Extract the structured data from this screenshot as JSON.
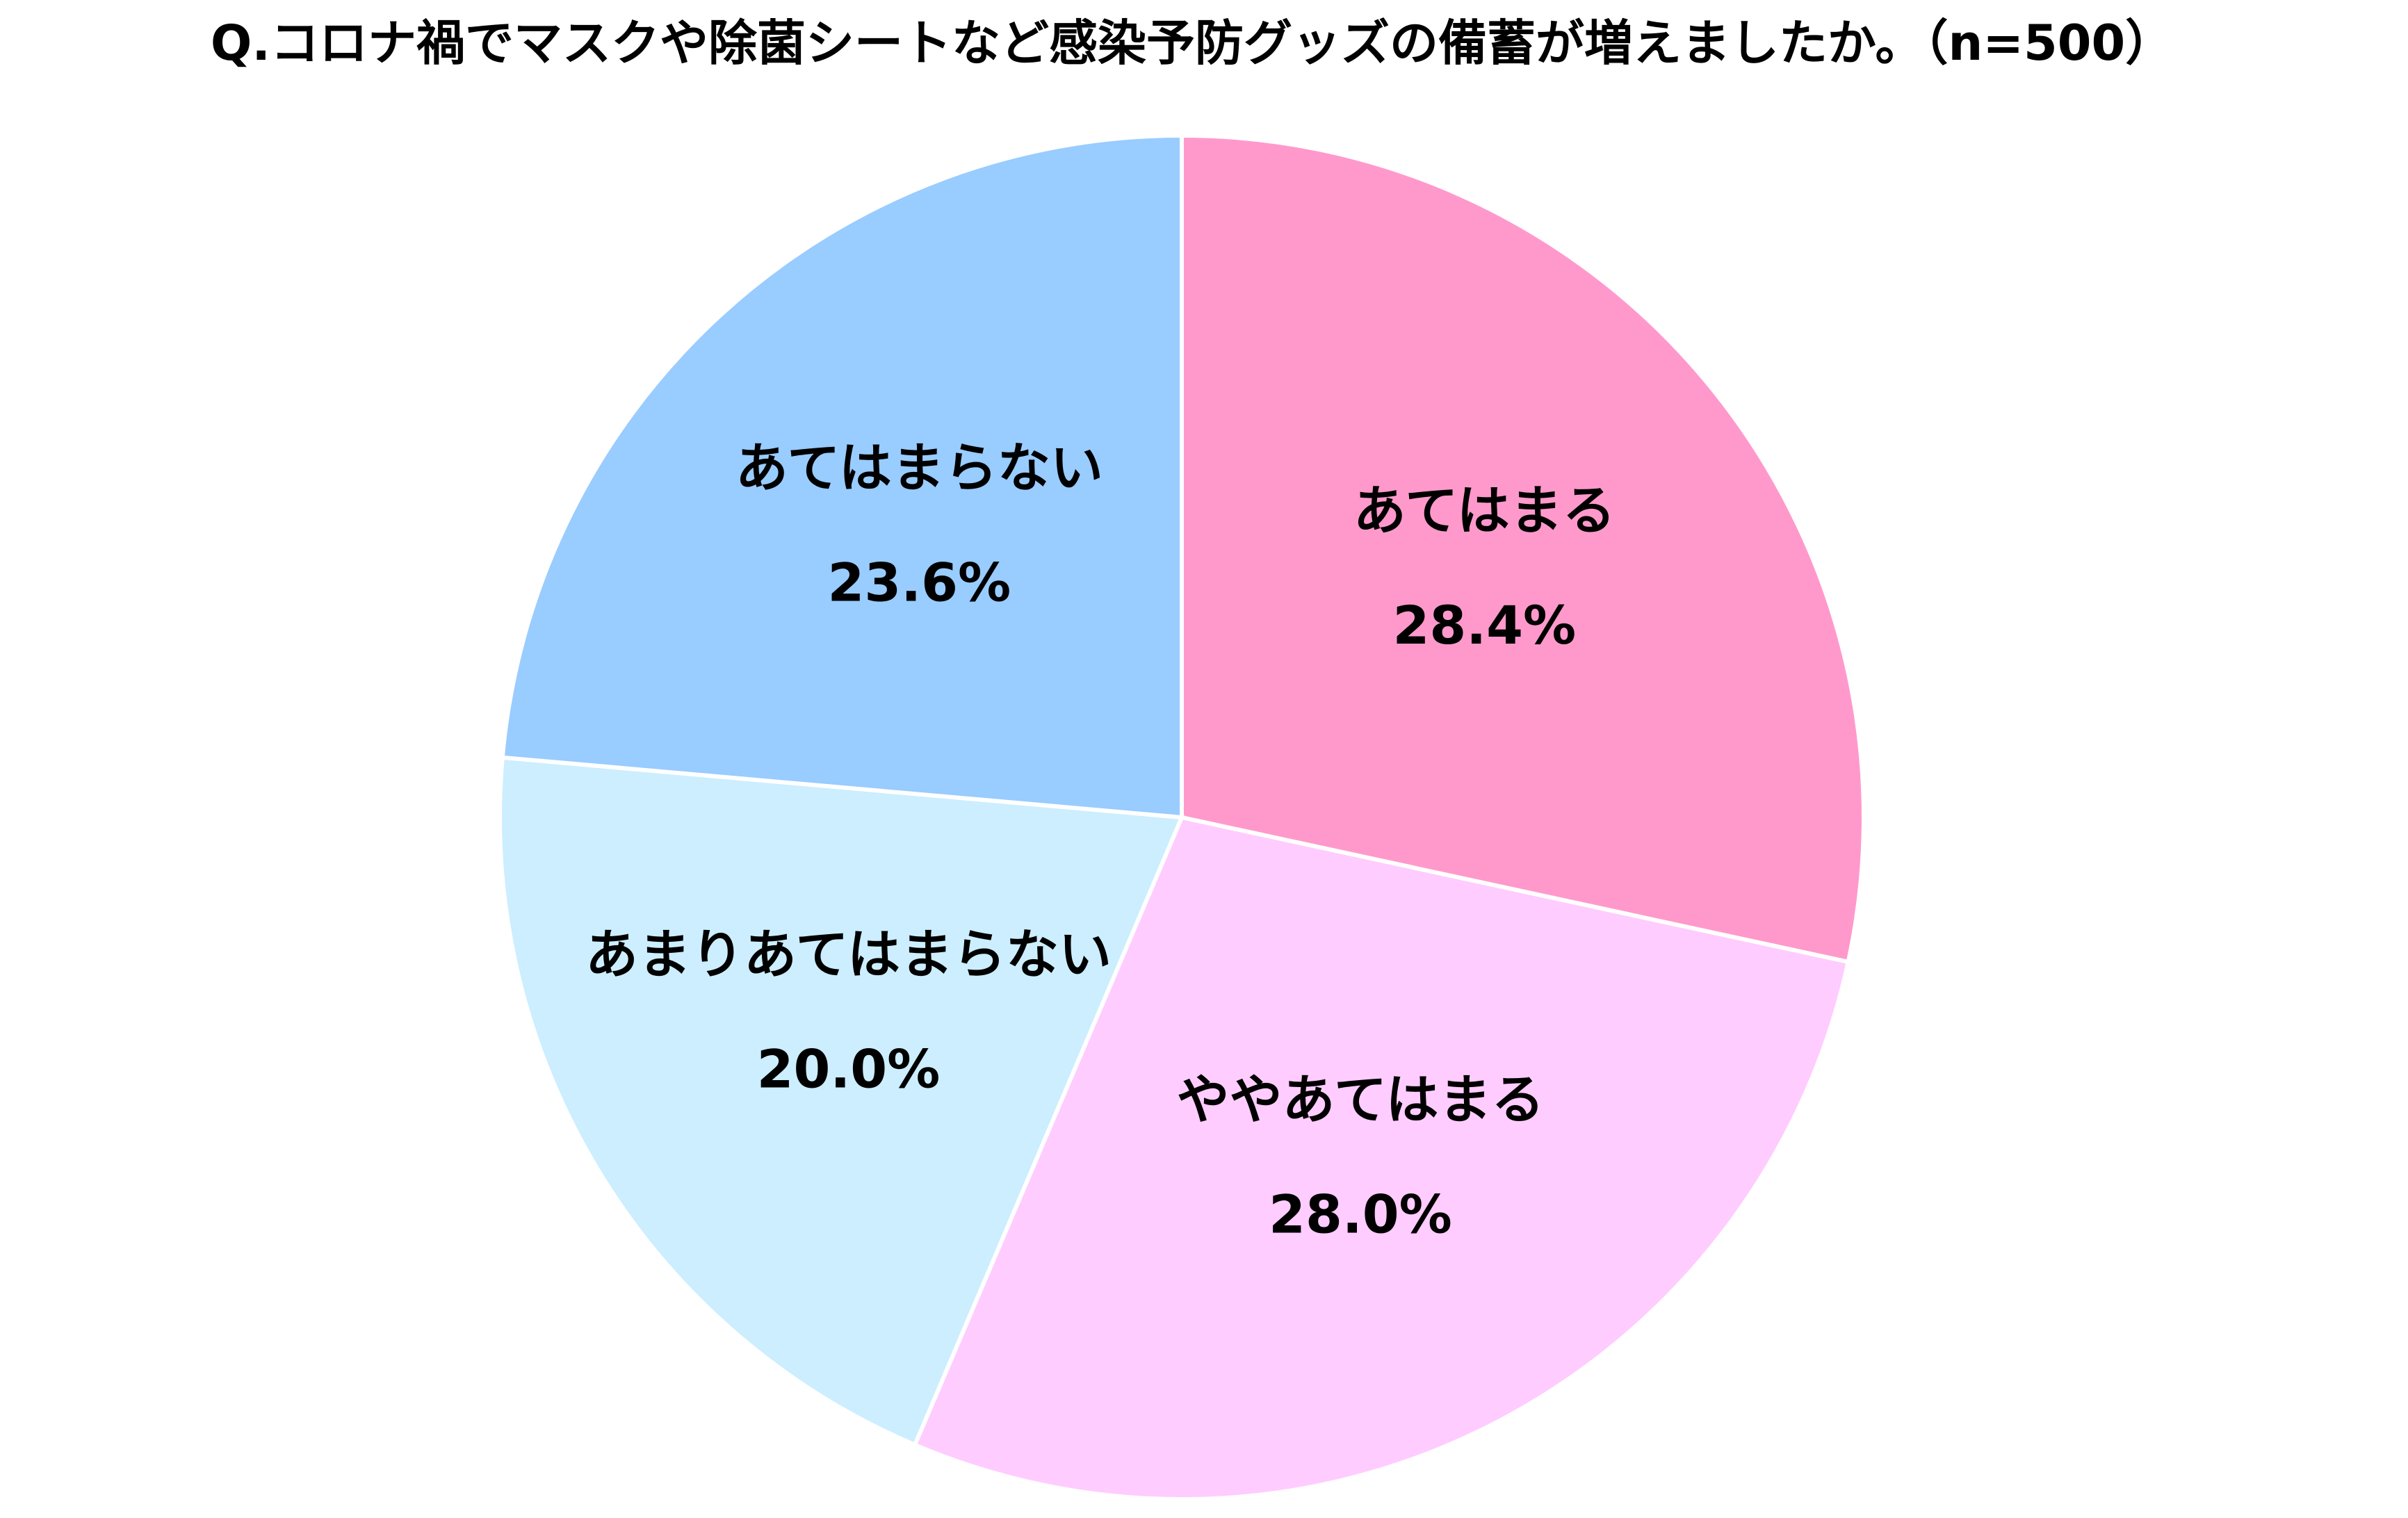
{
  "chart_data": {
    "type": "pie",
    "title": "Q.コロナ禍でマスクや除菌シートなど感染予防グッズの備蓄が増えましたか。（n=500）",
    "categories": [
      "あてはまる",
      "ややあてはまる",
      "あまりあてはまらない",
      "あてはまらない"
    ],
    "values": [
      28.4,
      28.0,
      20.0,
      23.6
    ],
    "value_labels": [
      "28.4%",
      "28.0%",
      "20.0%",
      "23.6%"
    ],
    "colors": [
      "#ff99cc",
      "#ffccff",
      "#cceeff",
      "#99ccff"
    ]
  }
}
